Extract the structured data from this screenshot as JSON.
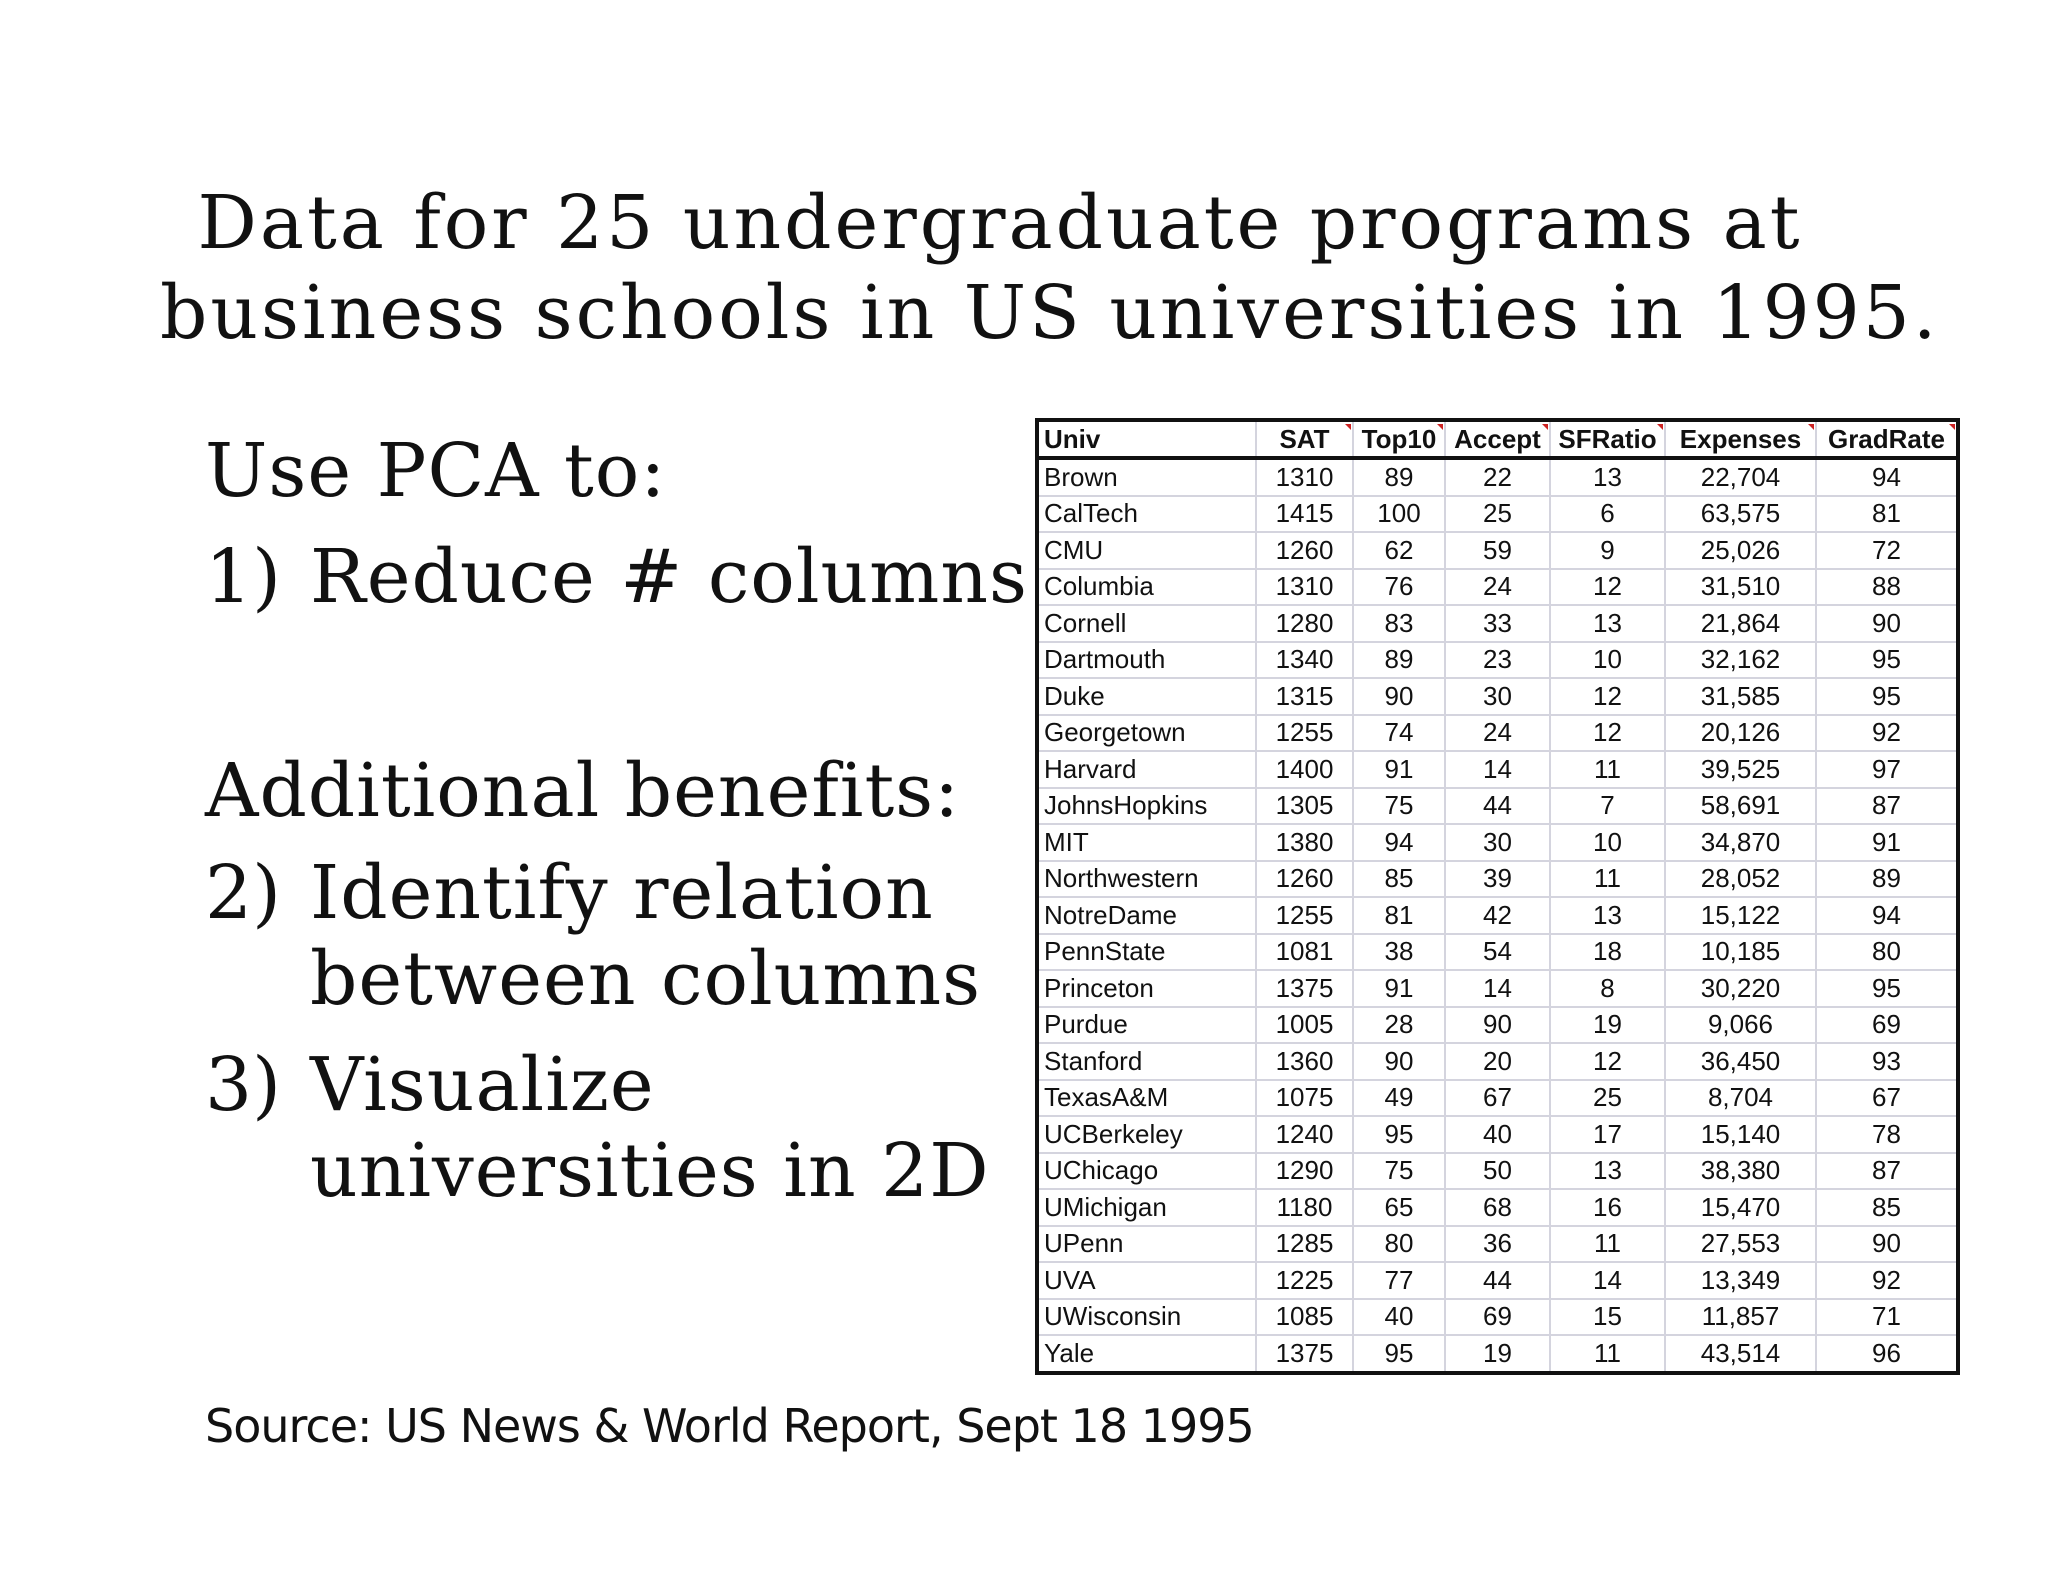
{
  "title": {
    "line1": "Data for 25 undergraduate programs at",
    "line2": "business schools in US universities in 1995."
  },
  "left": {
    "heading": "Use PCA to:",
    "item1": {
      "num": "1)",
      "text": "Reduce # columns"
    },
    "additional": "Additional benefits:",
    "item2": {
      "num": "2)",
      "line1": "Identify relation",
      "line2": "between columns"
    },
    "item3": {
      "num": "3)",
      "line1": "Visualize",
      "line2": "universities in 2D"
    }
  },
  "source": "Source: US News & World Report, Sept 18 1995",
  "table": {
    "headers": [
      "Univ",
      "SAT",
      "Top10",
      "Accept",
      "SFRatio",
      "Expenses",
      "GradRate"
    ],
    "rows": [
      [
        "Brown",
        "1310",
        "89",
        "22",
        "13",
        "22,704",
        "94"
      ],
      [
        "CalTech",
        "1415",
        "100",
        "25",
        "6",
        "63,575",
        "81"
      ],
      [
        "CMU",
        "1260",
        "62",
        "59",
        "9",
        "25,026",
        "72"
      ],
      [
        "Columbia",
        "1310",
        "76",
        "24",
        "12",
        "31,510",
        "88"
      ],
      [
        "Cornell",
        "1280",
        "83",
        "33",
        "13",
        "21,864",
        "90"
      ],
      [
        "Dartmouth",
        "1340",
        "89",
        "23",
        "10",
        "32,162",
        "95"
      ],
      [
        "Duke",
        "1315",
        "90",
        "30",
        "12",
        "31,585",
        "95"
      ],
      [
        "Georgetown",
        "1255",
        "74",
        "24",
        "12",
        "20,126",
        "92"
      ],
      [
        "Harvard",
        "1400",
        "91",
        "14",
        "11",
        "39,525",
        "97"
      ],
      [
        "JohnsHopkins",
        "1305",
        "75",
        "44",
        "7",
        "58,691",
        "87"
      ],
      [
        "MIT",
        "1380",
        "94",
        "30",
        "10",
        "34,870",
        "91"
      ],
      [
        "Northwestern",
        "1260",
        "85",
        "39",
        "11",
        "28,052",
        "89"
      ],
      [
        "NotreDame",
        "1255",
        "81",
        "42",
        "13",
        "15,122",
        "94"
      ],
      [
        "PennState",
        "1081",
        "38",
        "54",
        "18",
        "10,185",
        "80"
      ],
      [
        "Princeton",
        "1375",
        "91",
        "14",
        "8",
        "30,220",
        "95"
      ],
      [
        "Purdue",
        "1005",
        "28",
        "90",
        "19",
        "9,066",
        "69"
      ],
      [
        "Stanford",
        "1360",
        "90",
        "20",
        "12",
        "36,450",
        "93"
      ],
      [
        "TexasA&M",
        "1075",
        "49",
        "67",
        "25",
        "8,704",
        "67"
      ],
      [
        "UCBerkeley",
        "1240",
        "95",
        "40",
        "17",
        "15,140",
        "78"
      ],
      [
        "UChicago",
        "1290",
        "75",
        "50",
        "13",
        "38,380",
        "87"
      ],
      [
        "UMichigan",
        "1180",
        "65",
        "68",
        "16",
        "15,470",
        "85"
      ],
      [
        "UPenn",
        "1285",
        "80",
        "36",
        "11",
        "27,553",
        "90"
      ],
      [
        "UVA",
        "1225",
        "77",
        "44",
        "14",
        "13,349",
        "92"
      ],
      [
        "UWisconsin",
        "1085",
        "40",
        "69",
        "15",
        "11,857",
        "71"
      ],
      [
        "Yale",
        "1375",
        "95",
        "19",
        "11",
        "43,514",
        "96"
      ]
    ]
  }
}
